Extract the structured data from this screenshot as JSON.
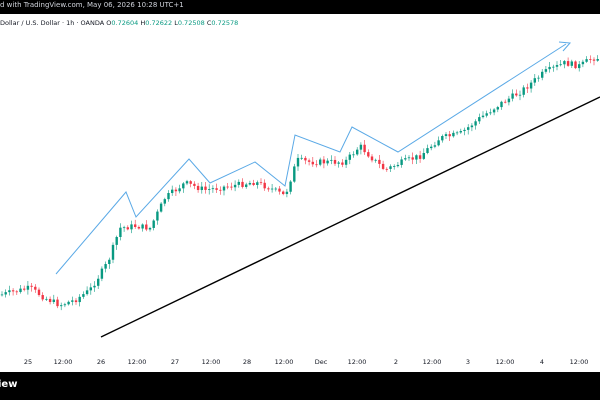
{
  "header": {
    "text": "d with TradingView.com, May 06, 2026 10:28 UTC+1"
  },
  "symbol": {
    "title": "Dollar / U.S. Dollar · 1h · OANDA",
    "o_label": "O",
    "o": "0.72604",
    "h_label": "H",
    "h": "0.72622",
    "l_label": "L",
    "l": "0.72508",
    "c_label": "C",
    "c": "0.72578"
  },
  "footer": {
    "brand": "iew"
  },
  "colors": {
    "up": "#089981",
    "down": "#f23645",
    "pattern": "#5aa9e6",
    "trendline": "#000000"
  },
  "chart_data": {
    "type": "candlestick",
    "timeframe": "1h",
    "x_tick_labels": [
      "25",
      "12:00",
      "26",
      "12:00",
      "27",
      "12:00",
      "28",
      "12:00",
      "Dec",
      "12:00",
      "2",
      "12:00",
      "3",
      "12:00",
      "4",
      "12:00"
    ],
    "drawings": [
      {
        "type": "trendline",
        "color": "#000000",
        "description": "rising support line"
      },
      {
        "type": "zigzag",
        "color": "#5aa9e6",
        "description": "higher highs / higher lows path",
        "end_arrow": true
      }
    ]
  }
}
